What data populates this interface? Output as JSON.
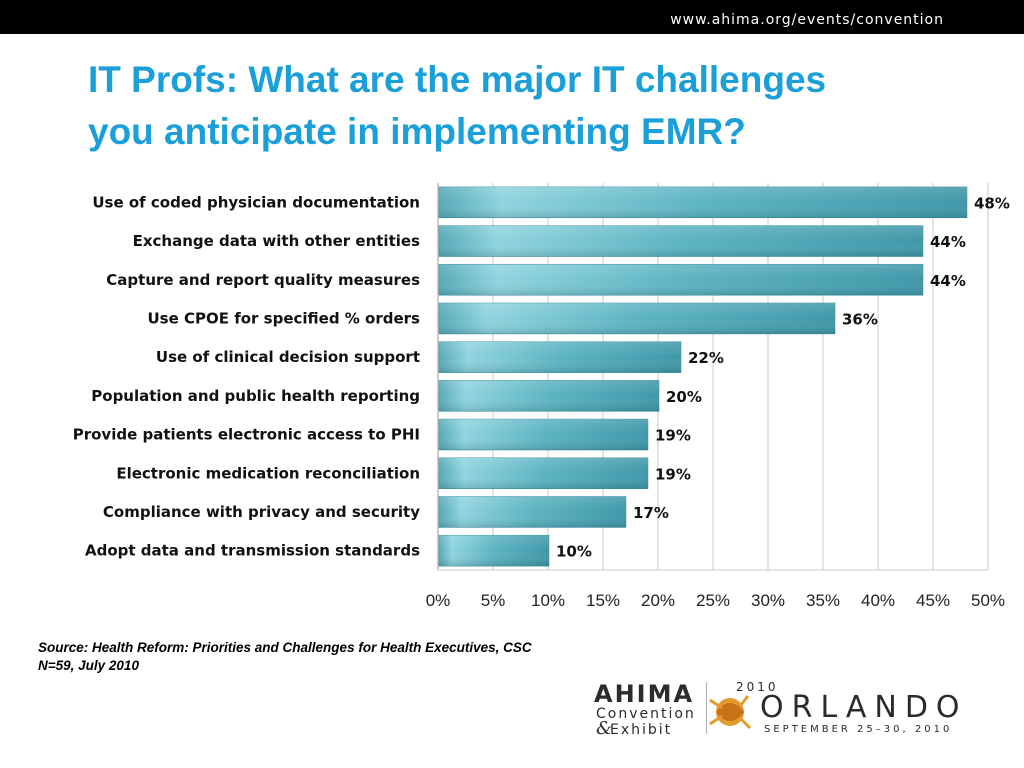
{
  "header": {
    "url": "www.ahima.org/events/convention"
  },
  "title": {
    "line1": "IT Profs:  What are the major IT challenges",
    "line2": "you anticipate in implementing EMR?"
  },
  "chart_data": {
    "type": "bar",
    "orientation": "horizontal",
    "categories": [
      "Use of coded physician documentation",
      "Exchange data with other entities",
      "Capture and report quality measures",
      "Use CPOE for specified % orders",
      "Use of clinical decision support",
      "Population and public health reporting",
      "Provide patients electronic access to PHI",
      "Electronic medication reconciliation",
      "Compliance with privacy and security",
      "Adopt data and transmission standards"
    ],
    "values": [
      48,
      44,
      44,
      36,
      22,
      20,
      19,
      19,
      17,
      10
    ],
    "value_labels": [
      "48%",
      "44%",
      "44%",
      "36%",
      "22%",
      "20%",
      "19%",
      "19%",
      "17%",
      "10%"
    ],
    "xlim": [
      0,
      50
    ],
    "x_ticks": [
      "0%",
      "5%",
      "10%",
      "15%",
      "20%",
      "25%",
      "30%",
      "35%",
      "40%",
      "45%",
      "50%"
    ],
    "grid": "vertical",
    "bar_color": "#4aa3b4",
    "bar_highlight": "#8fd4df"
  },
  "source": {
    "line1": "Source:  Health Reform: Priorities and Challenges for Health Executives, CSC",
    "line2": "N=59,  July 2010"
  },
  "logo": {
    "org": "AHIMA",
    "convention": "Convention",
    "ampersand": "&",
    "exhibit": "Exhibit",
    "year": "2010",
    "city": "ORLANDO",
    "dates": "SEPTEMBER 25–30, 2010"
  }
}
